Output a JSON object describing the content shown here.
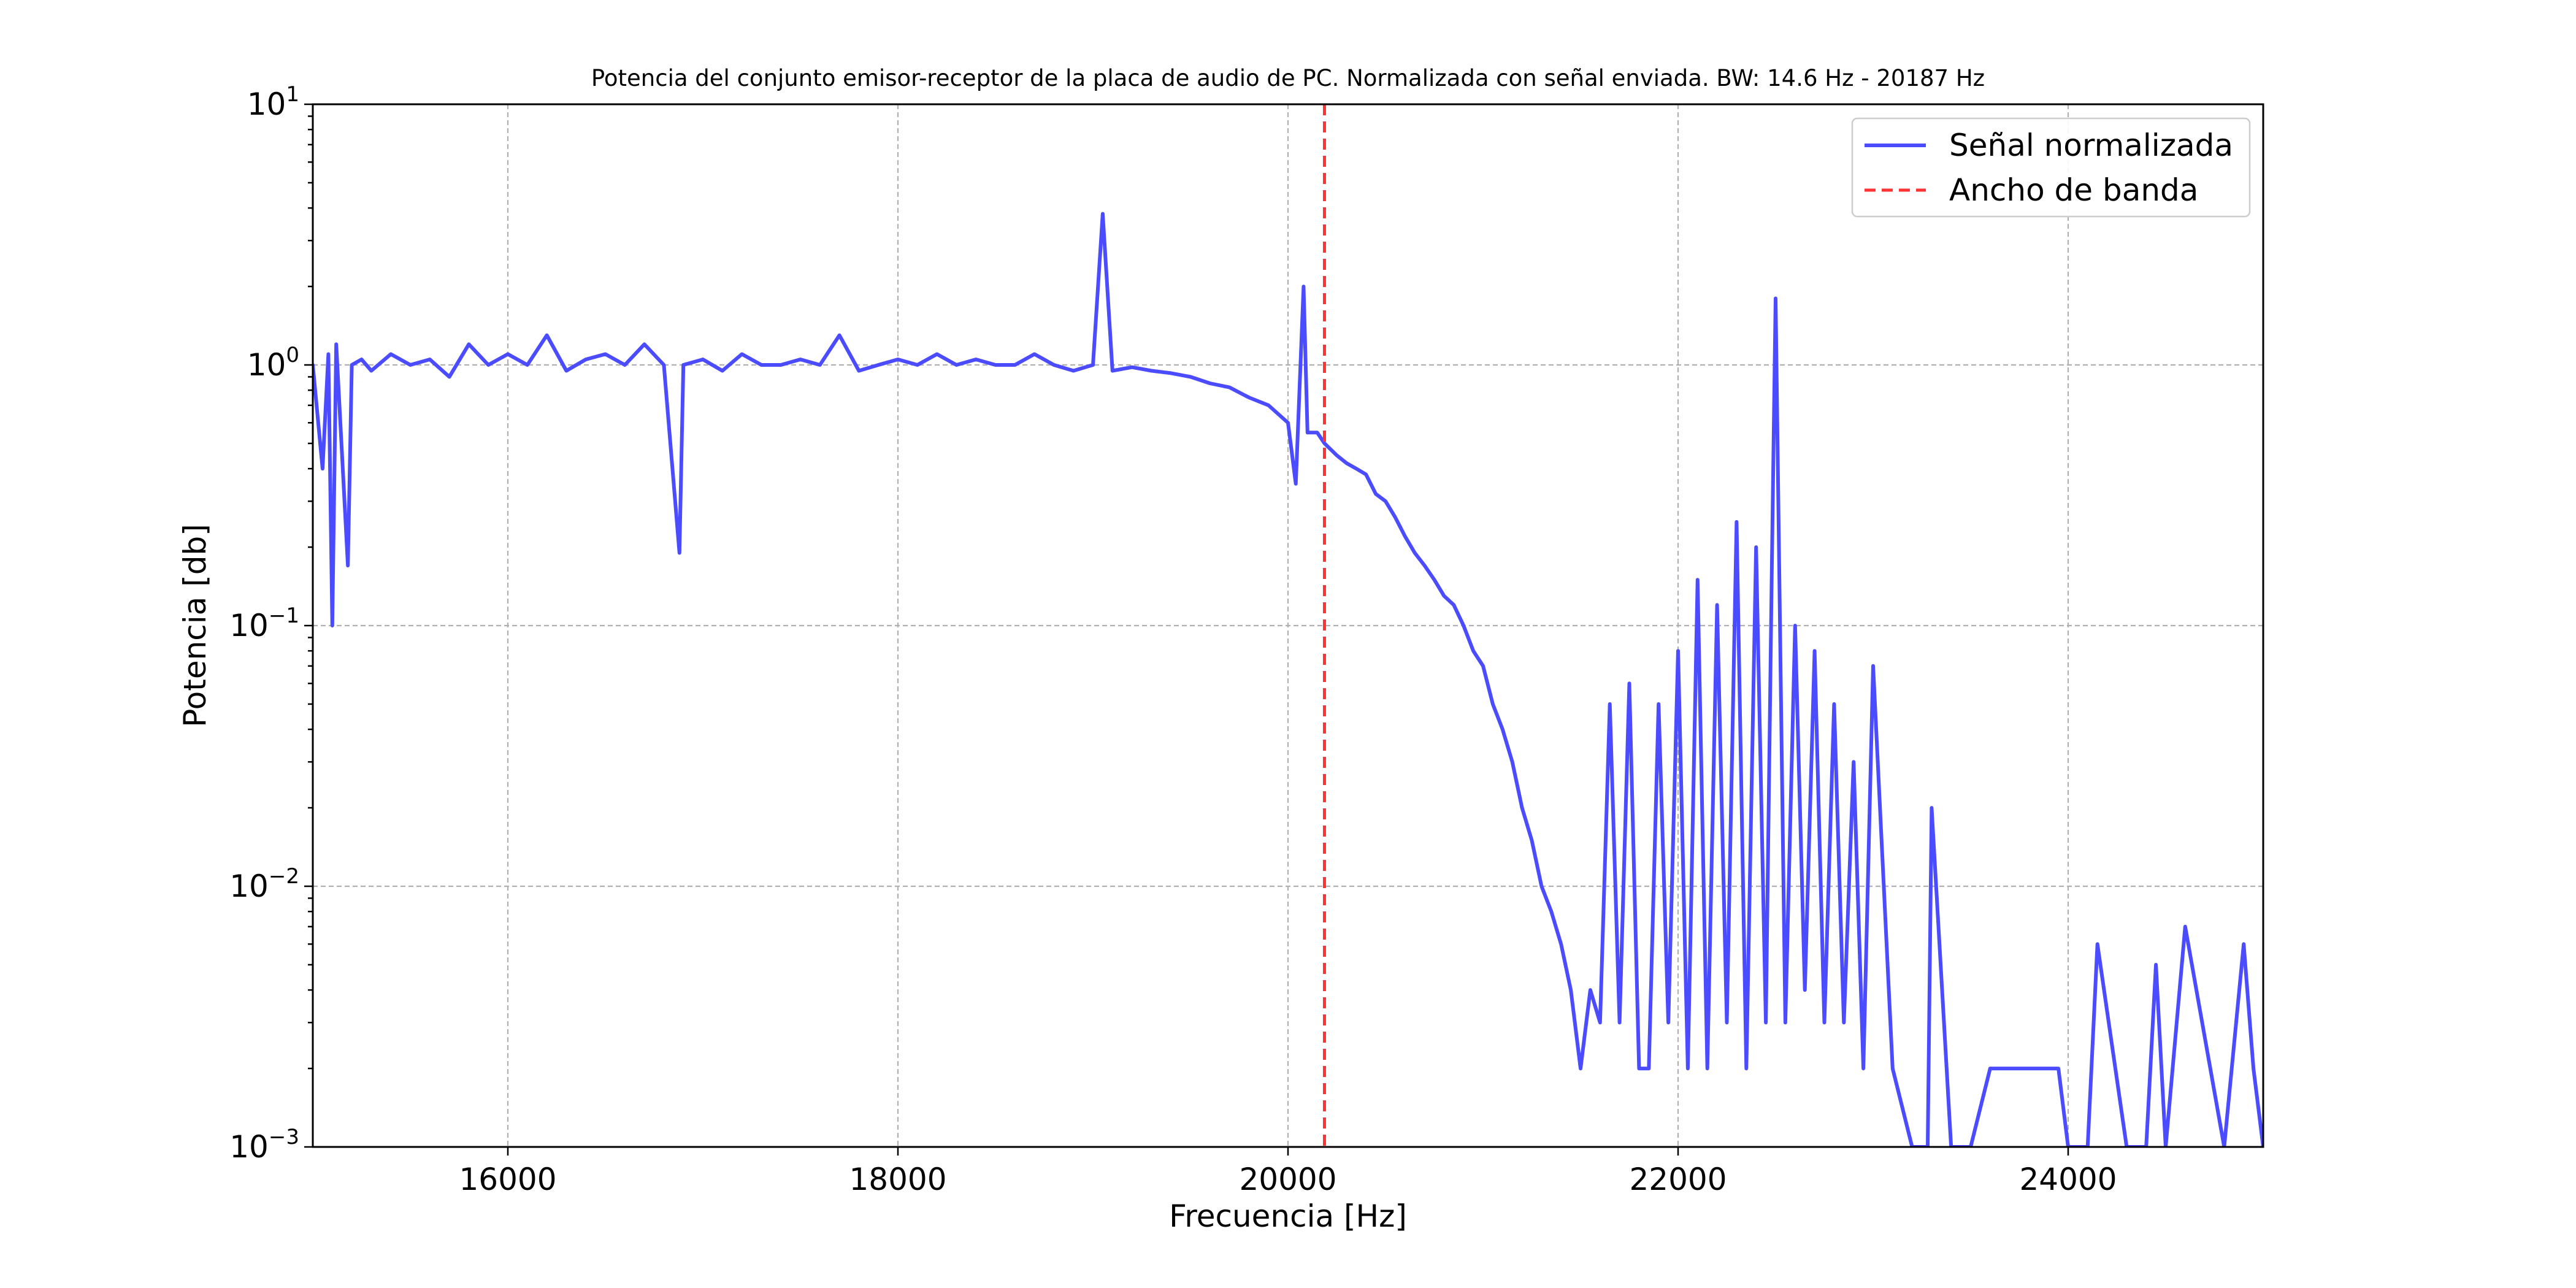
{
  "chart_data": {
    "type": "line",
    "title": "Potencia del conjunto emisor-receptor de la placa de audio de PC. Normalizada con señal enviada. BW: 14.6 Hz - 20187 Hz",
    "xlabel": "Frecuencia [Hz]",
    "ylabel": "Potencia [db]",
    "xlim": [
      15000,
      25000
    ],
    "ylim": [
      0.001,
      10
    ],
    "yscale": "log",
    "grid": true,
    "legend_position": "top-right",
    "x_ticks": [
      16000,
      18000,
      20000,
      22000,
      24000
    ],
    "x_tick_labels": [
      "16000",
      "18000",
      "20000",
      "22000",
      "24000"
    ],
    "y_ticks": [
      0.001,
      0.01,
      0.1,
      1,
      10
    ],
    "y_tick_labels": [
      {
        "base": "10",
        "exp": "−3"
      },
      {
        "base": "10",
        "exp": "−2"
      },
      {
        "base": "10",
        "exp": "−1"
      },
      {
        "base": "10",
        "exp": "0"
      },
      {
        "base": "10",
        "exp": "1"
      }
    ],
    "series": [
      {
        "name": "Señal normalizada",
        "color": "#4b4bff",
        "style": "solid",
        "x": [
          15000,
          15050,
          15080,
          15100,
          15120,
          15180,
          15200,
          15250,
          15300,
          15400,
          15500,
          15600,
          15700,
          15800,
          15900,
          16000,
          16100,
          16200,
          16300,
          16400,
          16500,
          16600,
          16700,
          16800,
          16880,
          16900,
          17000,
          17100,
          17200,
          17300,
          17400,
          17500,
          17600,
          17700,
          17800,
          17900,
          18000,
          18100,
          18200,
          18300,
          18400,
          18500,
          18600,
          18700,
          18800,
          18900,
          19000,
          19050,
          19100,
          19200,
          19300,
          19400,
          19500,
          19600,
          19700,
          19800,
          19900,
          20000,
          20040,
          20080,
          20100,
          20150,
          20187,
          20250,
          20300,
          20350,
          20400,
          20450,
          20500,
          20550,
          20600,
          20650,
          20700,
          20750,
          20800,
          20850,
          20900,
          20950,
          21000,
          21050,
          21100,
          21150,
          21200,
          21250,
          21300,
          21350,
          21400,
          21450,
          21500,
          21550,
          21600,
          21650,
          21700,
          21750,
          21800,
          21850,
          21900,
          21950,
          22000,
          22050,
          22100,
          22150,
          22200,
          22250,
          22300,
          22350,
          22400,
          22450,
          22480,
          22500,
          22550,
          22600,
          22650,
          22700,
          22750,
          22800,
          22850,
          22900,
          22950,
          23000,
          23100,
          23200,
          23280,
          23300,
          23400,
          23500,
          23600,
          23950,
          24000,
          24100,
          24150,
          24300,
          24400,
          24450,
          24500,
          24600,
          24800,
          24900,
          24950,
          25000
        ],
        "y": [
          1.0,
          0.4,
          1.1,
          0.1,
          1.2,
          0.17,
          1.0,
          1.05,
          0.95,
          1.1,
          1.0,
          1.05,
          0.9,
          1.2,
          1.0,
          1.1,
          1.0,
          1.3,
          0.95,
          1.05,
          1.1,
          1.0,
          1.2,
          1.0,
          0.19,
          1.0,
          1.05,
          0.95,
          1.1,
          1.0,
          1.0,
          1.05,
          1.0,
          1.3,
          0.95,
          1.0,
          1.05,
          1.0,
          1.1,
          1.0,
          1.05,
          1.0,
          1.0,
          1.1,
          1.0,
          0.95,
          1.0,
          3.8,
          0.95,
          0.98,
          0.95,
          0.93,
          0.9,
          0.85,
          0.82,
          0.75,
          0.7,
          0.6,
          0.35,
          2.0,
          0.55,
          0.55,
          0.5,
          0.45,
          0.42,
          0.4,
          0.38,
          0.32,
          0.3,
          0.26,
          0.22,
          0.19,
          0.17,
          0.15,
          0.13,
          0.12,
          0.1,
          0.08,
          0.07,
          0.05,
          0.04,
          0.03,
          0.02,
          0.015,
          0.01,
          0.008,
          0.006,
          0.004,
          0.002,
          0.004,
          0.003,
          0.05,
          0.003,
          0.06,
          0.002,
          0.002,
          0.05,
          0.003,
          0.08,
          0.002,
          0.15,
          0.002,
          0.12,
          0.003,
          0.25,
          0.002,
          0.2,
          0.003,
          0.15,
          1.8,
          0.003,
          0.1,
          0.004,
          0.08,
          0.003,
          0.05,
          0.003,
          0.03,
          0.002,
          0.07,
          0.002,
          0.001,
          0.001,
          0.02,
          0.001,
          0.001,
          0.002,
          0.002,
          0.001,
          0.001,
          0.006,
          0.001,
          0.001,
          0.005,
          0.001,
          0.007,
          0.001,
          0.006,
          0.002,
          0.001
        ]
      },
      {
        "name": "Ancho de banda",
        "color": "#ff3333",
        "style": "dashed",
        "x_value": 20187
      }
    ]
  }
}
